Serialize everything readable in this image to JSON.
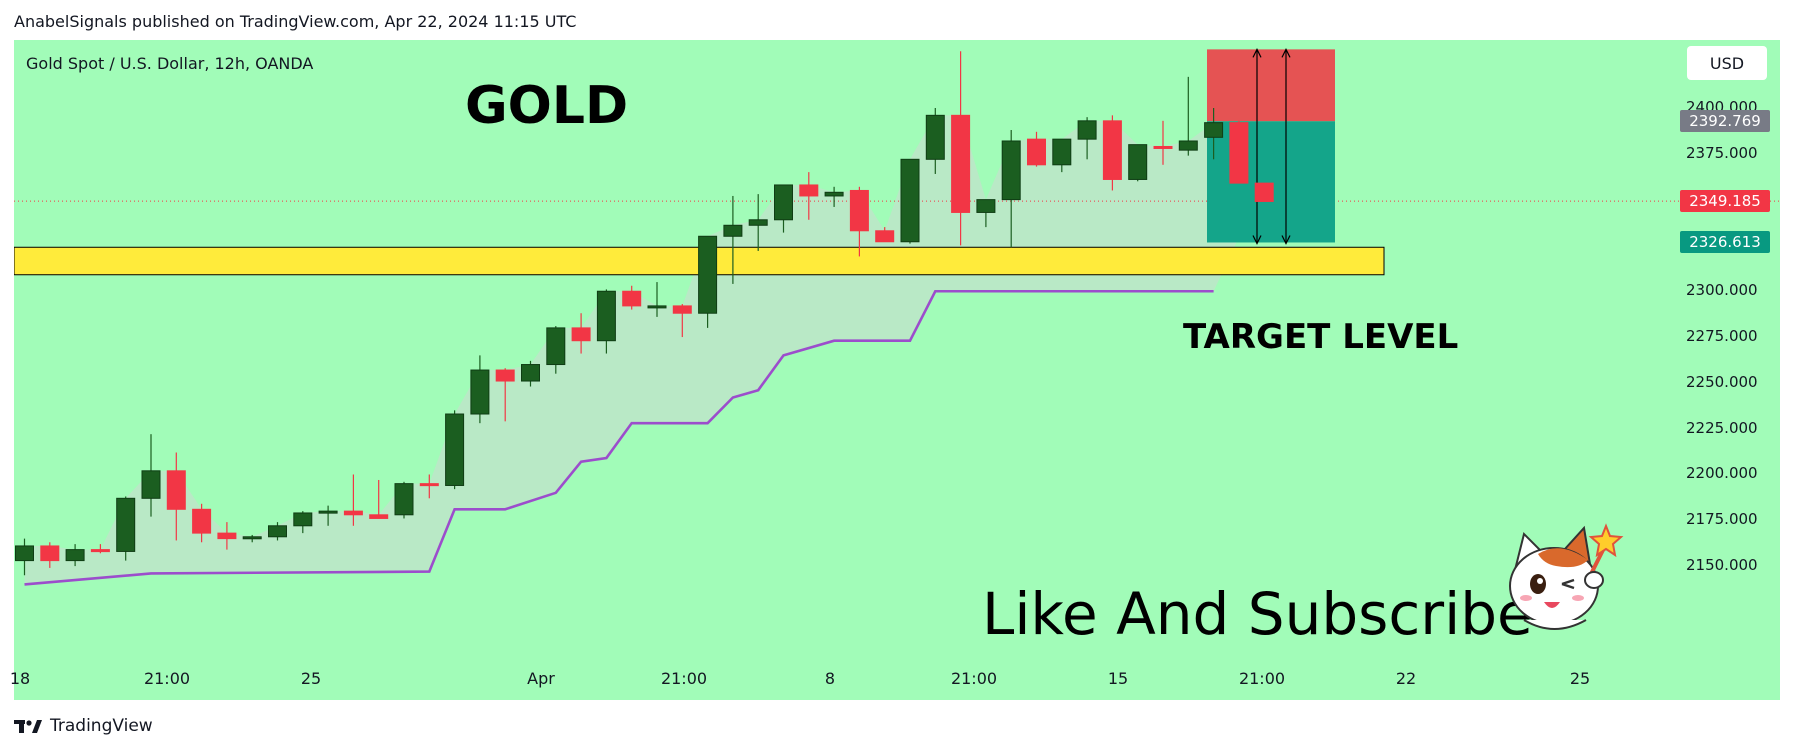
{
  "header": {
    "publisher_line": "AnabelSignals published on TradingView.com, Apr 22, 2024 11:15 UTC"
  },
  "chart": {
    "symbol_line": "Gold Spot / U.S. Dollar, 12h, OANDA",
    "title": "GOLD",
    "target_label": "TARGET LEVEL",
    "cta_text": "Like And Subscribe",
    "currency": "USD",
    "price_ticks": [
      "2400.000",
      "2375.000",
      "2300.000",
      "2275.000",
      "2250.000",
      "2225.000",
      "2200.000",
      "2175.000",
      "2150.000"
    ],
    "price_badges": [
      {
        "label": "2392.769",
        "color": "#787b86"
      },
      {
        "label": "2349.185",
        "color": "#f23645"
      },
      {
        "label": "2326.613",
        "color": "#089981"
      }
    ],
    "time_ticks": [
      "18",
      "21:00",
      "25",
      "Apr",
      "21:00",
      "8",
      "21:00",
      "15",
      "21:00",
      "22",
      "25"
    ]
  },
  "footer": {
    "brand": "TradingView",
    "logo_icon": "tradingview-logo-icon"
  },
  "colors": {
    "background": "#a1fcb8",
    "up_candle": "#1b5e20",
    "down_candle": "#f23645",
    "zone": "#ffeb3b",
    "supertrend": "#9c4dcc",
    "stop_zone": "#e55353",
    "profit_zone": "#14a58a"
  },
  "chart_data": {
    "type": "candlestick",
    "instrument": "Gold Spot / U.S. Dollar",
    "timeframe": "12h",
    "currency": "USD",
    "y_range": [
      2140,
      2420
    ],
    "candles": [
      {
        "t": "Mar 18 00:00",
        "o": 2153,
        "h": 2165,
        "l": 2145,
        "c": 2161
      },
      {
        "t": "Mar 18 12:00",
        "o": 2161,
        "h": 2163,
        "l": 2149,
        "c": 2153
      },
      {
        "t": "Mar 19 00:00",
        "o": 2153,
        "h": 2162,
        "l": 2150,
        "c": 2159
      },
      {
        "t": "Mar 19 12:00",
        "o": 2159,
        "h": 2162,
        "l": 2157,
        "c": 2158
      },
      {
        "t": "Mar 20 00:00",
        "o": 2158,
        "h": 2188,
        "l": 2153,
        "c": 2187
      },
      {
        "t": "Mar 20 12:00",
        "o": 2187,
        "h": 2222,
        "l": 2177,
        "c": 2202
      },
      {
        "t": "Mar 21 00:00",
        "o": 2202,
        "h": 2212,
        "l": 2164,
        "c": 2181
      },
      {
        "t": "Mar 21 12:00",
        "o": 2181,
        "h": 2184,
        "l": 2163,
        "c": 2168
      },
      {
        "t": "Mar 22 00:00",
        "o": 2168,
        "h": 2174,
        "l": 2159,
        "c": 2165
      },
      {
        "t": "Mar 22 12:00",
        "o": 2165,
        "h": 2167,
        "l": 2163,
        "c": 2166
      },
      {
        "t": "Mar 25 00:00",
        "o": 2166,
        "h": 2174,
        "l": 2164,
        "c": 2172
      },
      {
        "t": "Mar 25 12:00",
        "o": 2172,
        "h": 2180,
        "l": 2168,
        "c": 2179
      },
      {
        "t": "Mar 26 00:00",
        "o": 2179,
        "h": 2183,
        "l": 2172,
        "c": 2180
      },
      {
        "t": "Mar 26 12:00",
        "o": 2180,
        "h": 2200,
        "l": 2172,
        "c": 2178
      },
      {
        "t": "Mar 27 00:00",
        "o": 2178,
        "h": 2197,
        "l": 2176,
        "c": 2176
      },
      {
        "t": "Mar 27 12:00",
        "o": 2178,
        "h": 2196,
        "l": 2176,
        "c": 2195
      },
      {
        "t": "Mar 28 00:00",
        "o": 2195,
        "h": 2200,
        "l": 2187,
        "c": 2194
      },
      {
        "t": "Mar 28 12:00",
        "o": 2194,
        "h": 2235,
        "l": 2192,
        "c": 2233
      },
      {
        "t": "Apr 01 00:00",
        "o": 2233,
        "h": 2265,
        "l": 2228,
        "c": 2257
      },
      {
        "t": "Apr 01 12:00",
        "o": 2257,
        "h": 2258,
        "l": 2229,
        "c": 2251
      },
      {
        "t": "Apr 02 00:00",
        "o": 2251,
        "h": 2262,
        "l": 2248,
        "c": 2260
      },
      {
        "t": "Apr 02 12:00",
        "o": 2260,
        "h": 2281,
        "l": 2255,
        "c": 2280
      },
      {
        "t": "Apr 03 00:00",
        "o": 2280,
        "h": 2288,
        "l": 2266,
        "c": 2273
      },
      {
        "t": "Apr 03 12:00",
        "o": 2273,
        "h": 2301,
        "l": 2266,
        "c": 2300
      },
      {
        "t": "Apr 04 00:00",
        "o": 2300,
        "h": 2303,
        "l": 2290,
        "c": 2292
      },
      {
        "t": "Apr 04 12:00",
        "o": 2292,
        "h": 2305,
        "l": 2286,
        "c": 2292
      },
      {
        "t": "Apr 05 00:00",
        "o": 2292,
        "h": 2293,
        "l": 2275,
        "c": 2288
      },
      {
        "t": "Apr 05 12:00",
        "o": 2288,
        "h": 2330,
        "l": 2280,
        "c": 2330
      },
      {
        "t": "Apr 08 00:00",
        "o": 2330,
        "h": 2352,
        "l": 2304,
        "c": 2336
      },
      {
        "t": "Apr 08 12:00",
        "o": 2336,
        "h": 2353,
        "l": 2322,
        "c": 2339
      },
      {
        "t": "Apr 09 00:00",
        "o": 2339,
        "h": 2358,
        "l": 2332,
        "c": 2358
      },
      {
        "t": "Apr 09 12:00",
        "o": 2358,
        "h": 2365,
        "l": 2339,
        "c": 2352
      },
      {
        "t": "Apr 10 00:00",
        "o": 2352,
        "h": 2357,
        "l": 2346,
        "c": 2354
      },
      {
        "t": "Apr 10 12:00",
        "o": 2355,
        "h": 2357,
        "l": 2319,
        "c": 2333
      },
      {
        "t": "Apr 11 00:00",
        "o": 2333,
        "h": 2335,
        "l": 2327,
        "c": 2327
      },
      {
        "t": "Apr 11 12:00",
        "o": 2327,
        "h": 2372,
        "l": 2326,
        "c": 2372
      },
      {
        "t": "Apr 12 00:00",
        "o": 2372,
        "h": 2400,
        "l": 2364,
        "c": 2396
      },
      {
        "t": "Apr 12 12:00",
        "o": 2396,
        "h": 2431,
        "l": 2325,
        "c": 2343
      },
      {
        "t": "Apr 15 00:00",
        "o": 2343,
        "h": 2350,
        "l": 2335,
        "c": 2350
      },
      {
        "t": "Apr 15 12:00",
        "o": 2350,
        "h": 2388,
        "l": 2324,
        "c": 2382
      },
      {
        "t": "Apr 16 00:00",
        "o": 2383,
        "h": 2387,
        "l": 2368,
        "c": 2369
      },
      {
        "t": "Apr 16 12:00",
        "o": 2369,
        "h": 2383,
        "l": 2365,
        "c": 2383
      },
      {
        "t": "Apr 17 00:00",
        "o": 2383,
        "h": 2395,
        "l": 2372,
        "c": 2393
      },
      {
        "t": "Apr 17 12:00",
        "o": 2393,
        "h": 2396,
        "l": 2355,
        "c": 2361
      },
      {
        "t": "Apr 18 00:00",
        "o": 2361,
        "h": 2380,
        "l": 2360,
        "c": 2380
      },
      {
        "t": "Apr 18 12:00",
        "o": 2379,
        "h": 2393,
        "l": 2369,
        "c": 2378
      },
      {
        "t": "Apr 19 00:00",
        "o": 2377,
        "h": 2417,
        "l": 2374,
        "c": 2382
      },
      {
        "t": "Apr 19 12:00",
        "o": 2384,
        "h": 2400,
        "l": 2372,
        "c": 2392
      },
      {
        "t": "Apr 21 12:00",
        "o": 2392,
        "h": 2393,
        "l": 2359,
        "c": 2359
      },
      {
        "t": "Apr 22 00:00",
        "o": 2359,
        "h": 2359,
        "l": 2349,
        "c": 2349
      }
    ],
    "supertrend": [
      {
        "t": "Mar 18 00:00",
        "v": 2140
      },
      {
        "t": "Mar 20 12:00",
        "v": 2146
      },
      {
        "t": "Mar 28 00:00",
        "v": 2147
      },
      {
        "t": "Mar 28 12:00",
        "v": 2181
      },
      {
        "t": "Apr 01 12:00",
        "v": 2181
      },
      {
        "t": "Apr 02 12:00",
        "v": 2190
      },
      {
        "t": "Apr 03 00:00",
        "v": 2207
      },
      {
        "t": "Apr 03 12:00",
        "v": 2209
      },
      {
        "t": "Apr 04 00:00",
        "v": 2228
      },
      {
        "t": "Apr 05 12:00",
        "v": 2228
      },
      {
        "t": "Apr 08 00:00",
        "v": 2242
      },
      {
        "t": "Apr 08 12:00",
        "v": 2246
      },
      {
        "t": "Apr 09 00:00",
        "v": 2265
      },
      {
        "t": "Apr 10 00:00",
        "v": 2273
      },
      {
        "t": "Apr 11 12:00",
        "v": 2273
      },
      {
        "t": "Apr 12 00:00",
        "v": 2300
      },
      {
        "t": "Apr 19 12:00",
        "v": 2300
      }
    ],
    "support_zone": {
      "low": 2309,
      "high": 2324
    },
    "position": {
      "entry": 2392.769,
      "stop": 2432,
      "target": 2326.613,
      "current": 2349.185
    }
  }
}
